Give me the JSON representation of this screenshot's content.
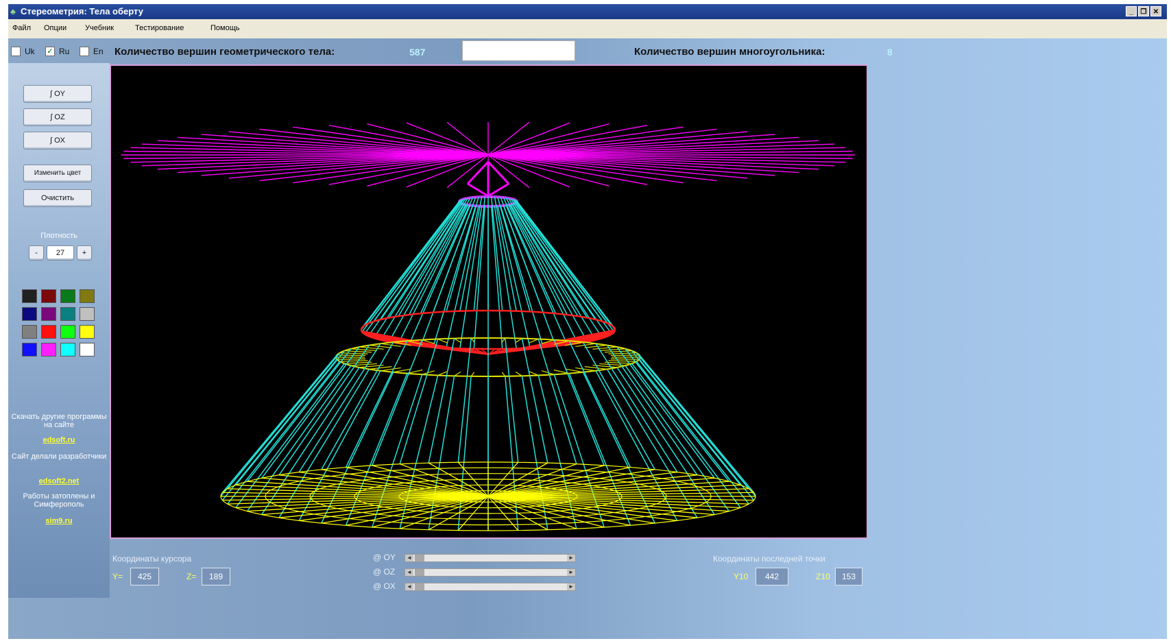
{
  "window": {
    "title": "Стереометрия: Тела оберту",
    "controls": [
      "_",
      "❐",
      "✕"
    ]
  },
  "menu": [
    "Файл",
    "Опции",
    "Учебник",
    "Тестирование",
    "Помощь"
  ],
  "langbar": {
    "languages": [
      {
        "label": "Uk",
        "checked": false
      },
      {
        "label": "Ru",
        "checked": true
      },
      {
        "label": "En",
        "checked": false
      }
    ],
    "solid_vertices_label": "Количество вершин геометрического тела:",
    "solid_vertices_value": "587",
    "input_value": "",
    "polygon_vertices_label": "Количество вершин многоугольника:",
    "polygon_vertices_value": "8"
  },
  "left": {
    "axis_buttons": [
      "∫ OY",
      "∫ OZ",
      "∫ OX"
    ],
    "change_color": "Изменить цвет",
    "clear": "Очистить",
    "density_label": "Плотность",
    "density_minus": "-",
    "density_value": "27",
    "density_plus": "+",
    "palette": [
      "#202020",
      "#7a0a0a",
      "#0a7a1a",
      "#807a10",
      "#0a0a80",
      "#7a0a7a",
      "#0a8080",
      "#c0c0c0",
      "#808080",
      "#ff1010",
      "#10ff10",
      "#ffff10",
      "#1010ff",
      "#ff20ff",
      "#10ffff",
      "#ffffff"
    ],
    "info1": "Скачать другие программы на сайте",
    "link1": "edsoft.ru",
    "info2": "Сайт делали разработчики",
    "link2": "edsoft2.net",
    "info3": "Работы затоплены и Симферополь",
    "link3": "sim9.ru"
  },
  "canvas": {
    "colors": {
      "top_disc": "#ff00ff",
      "cone": "#22e0d8",
      "cone_base": "#ff2020",
      "ring": "#e0e000",
      "bottom_disc": "#ffff00",
      "cone_tip": "#cc30ff"
    }
  },
  "bottom": {
    "cursor_title": "Координаты курсора",
    "y_label": "Y=",
    "y_value": "425",
    "z_label": "Z=",
    "z_value": "189",
    "sliders": [
      {
        "label": "@ OY"
      },
      {
        "label": "@ OZ"
      },
      {
        "label": "@ OX"
      }
    ],
    "last_title": "Координаты последней точки",
    "y2_label": "Y10",
    "y2_value": "442",
    "z2_label": "Z10",
    "z2_value": "153"
  }
}
